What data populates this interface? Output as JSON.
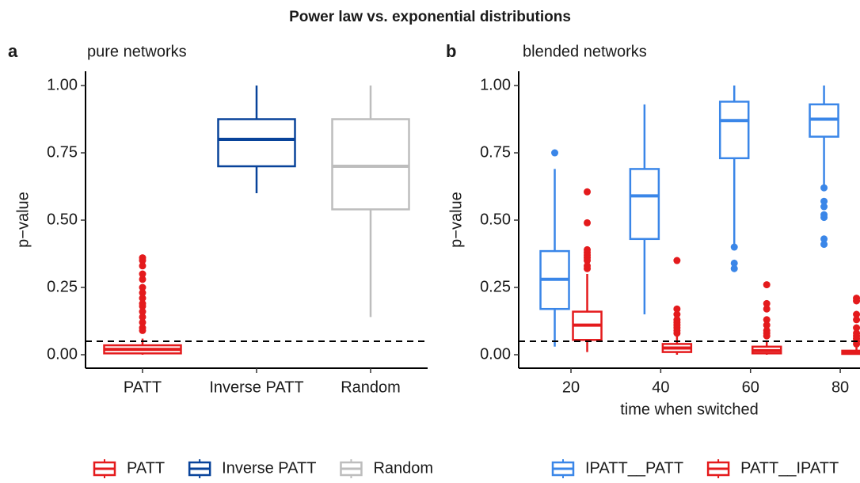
{
  "title": "Power law vs. exponential distributions",
  "chart_data": [
    {
      "type": "boxplot",
      "tag": "a",
      "subtitle": "pure networks",
      "y_label": "p−value",
      "categories": [
        "PATT",
        "Inverse PATT",
        "Random"
      ],
      "ylim": [
        -0.05,
        1.053
      ],
      "yticks": [
        {
          "value": 0,
          "label": "0.00"
        },
        {
          "value": 0.25,
          "label": "0.25"
        },
        {
          "value": 0.5,
          "label": "0.50"
        },
        {
          "value": 0.75,
          "label": "0.75"
        },
        {
          "value": 1,
          "label": "1.00"
        }
      ],
      "hline": 0.05,
      "series": [
        {
          "name": "PATT",
          "color": "#e41a1c",
          "boxes": [
            {
              "low": 0,
              "q1": 0.005,
              "median": 0.02,
              "q3": 0.035,
              "high": 0.06,
              "outliers": [
                0.36,
                0.35,
                0.33,
                0.3,
                0.28,
                0.25,
                0.23,
                0.21,
                0.19,
                0.18,
                0.16,
                0.14,
                0.12,
                0.1,
                0.09
              ]
            },
            null,
            null
          ]
        },
        {
          "name": "Inverse PATT",
          "color": "#08439a",
          "boxes": [
            null,
            {
              "low": 0.6,
              "q1": 0.7,
              "median": 0.8,
              "q3": 0.875,
              "high": 1,
              "outliers": []
            },
            null
          ]
        },
        {
          "name": "Random",
          "color": "#bdbdbd",
          "boxes": [
            null,
            null,
            {
              "low": 0.14,
              "q1": 0.54,
              "median": 0.7,
              "q3": 0.875,
              "high": 1,
              "outliers": []
            }
          ]
        }
      ]
    },
    {
      "type": "boxplot",
      "tag": "b",
      "subtitle": "blended networks",
      "y_label": "p−value",
      "x_label": "time when switched",
      "x": [
        20,
        40,
        60,
        80
      ],
      "xlim": [
        8.35,
        84.4
      ],
      "xticks": [
        20,
        40,
        60,
        80
      ],
      "ylim": [
        -0.05,
        1.053
      ],
      "yticks": [
        {
          "value": 0,
          "label": "0.00"
        },
        {
          "value": 0.25,
          "label": "0.25"
        },
        {
          "value": 0.5,
          "label": "0.50"
        },
        {
          "value": 0.75,
          "label": "0.75"
        },
        {
          "value": 1,
          "label": "1.00"
        }
      ],
      "hline": 0.05,
      "series": [
        {
          "name": "IPATT__PATT",
          "color": "#3a86e8",
          "boxes": [
            {
              "low": 0.03,
              "q1": 0.17,
              "median": 0.28,
              "q3": 0.385,
              "high": 0.69,
              "outliers": [
                0.75
              ]
            },
            {
              "low": 0.15,
              "q1": 0.43,
              "median": 0.59,
              "q3": 0.69,
              "high": 0.93,
              "outliers": []
            },
            {
              "low": 0.41,
              "q1": 0.73,
              "median": 0.87,
              "q3": 0.94,
              "high": 1,
              "outliers": [
                0.4,
                0.34,
                0.32
              ]
            },
            {
              "low": 0.63,
              "q1": 0.81,
              "median": 0.875,
              "q3": 0.93,
              "high": 1,
              "outliers": [
                0.62,
                0.57,
                0.55,
                0.52,
                0.51,
                0.43,
                0.41
              ]
            }
          ]
        },
        {
          "name": "PATT__IPATT",
          "color": "#e41a1c",
          "boxes": [
            {
              "low": 0.01,
              "q1": 0.055,
              "median": 0.11,
              "q3": 0.16,
              "high": 0.3,
              "outliers": [
                0.605,
                0.49,
                0.39,
                0.38,
                0.37,
                0.36,
                0.35,
                0.33,
                0.32
              ]
            },
            {
              "low": 0,
              "q1": 0.01,
              "median": 0.025,
              "q3": 0.04,
              "high": 0.07,
              "outliers": [
                0.35,
                0.17,
                0.15,
                0.13,
                0.12,
                0.11,
                0.1,
                0.09,
                0.08
              ]
            },
            {
              "low": 0,
              "q1": 0.005,
              "median": 0.015,
              "q3": 0.03,
              "high": 0.05,
              "outliers": [
                0.26,
                0.19,
                0.17,
                0.13,
                0.11,
                0.09,
                0.08,
                0.07
              ]
            },
            {
              "low": 0,
              "q1": 0.003,
              "median": 0.01,
              "q3": 0.015,
              "high": 0.03,
              "outliers": [
                0.21,
                0.2,
                0.15,
                0.13,
                0.1,
                0.08,
                0.07,
                0.06,
                0.05,
                0.04
              ]
            }
          ]
        }
      ]
    }
  ]
}
